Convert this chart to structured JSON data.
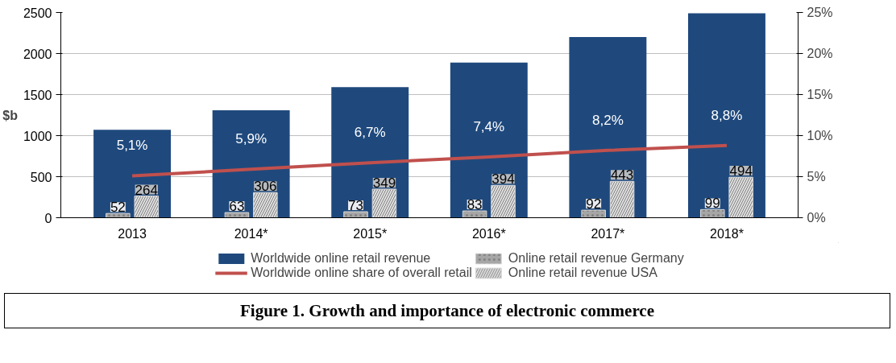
{
  "chart_data": {
    "type": "bar",
    "ylabel": "$b",
    "categories": [
      "2013",
      "2014*",
      "2015*",
      "2016*",
      "2017*",
      "2018*"
    ],
    "ylim": [
      0,
      2500
    ],
    "yticks": [
      0,
      500,
      1000,
      1500,
      2000,
      2500
    ],
    "y2lim": [
      0,
      25
    ],
    "y2ticks": [
      {
        "value": 0,
        "label": "0%"
      },
      {
        "value": 5,
        "label": "5%"
      },
      {
        "value": 10,
        "label": "10%"
      },
      {
        "value": 15,
        "label": "15%"
      },
      {
        "value": 20,
        "label": "20%"
      },
      {
        "value": 25,
        "label": "25%"
      }
    ],
    "grid": "y",
    "legend": "bottom",
    "series": [
      {
        "name": "Worldwide online retail revenue",
        "color": "#1f497d",
        "values": [
          1070,
          1310,
          1590,
          1890,
          2200,
          2490
        ]
      },
      {
        "name": "Worldwide online share of overall retail",
        "type": "line",
        "axis": "y2",
        "color": "#c0504d",
        "values": [
          5.1,
          5.9,
          6.7,
          7.4,
          8.2,
          8.8
        ],
        "value_labels": [
          "5,1%",
          "5,9%",
          "6,7%",
          "7,4%",
          "8,2%",
          "8,8%"
        ]
      },
      {
        "name": "Online retail revenue Germany",
        "color": "#a6a6a6",
        "values": [
          52,
          63,
          73,
          83,
          92,
          99
        ],
        "value_labels": [
          "52",
          "63",
          "73",
          "83",
          "92",
          "99"
        ]
      },
      {
        "name": "Online retail revenue USA",
        "color": "#e0e0e0",
        "values": [
          264,
          306,
          349,
          394,
          443,
          494
        ],
        "value_labels": [
          "264",
          "306",
          "349",
          "394",
          "443",
          "494"
        ]
      }
    ],
    "annotations": [
      "Figure 1. Growth and importance of electronic commerce"
    ]
  }
}
